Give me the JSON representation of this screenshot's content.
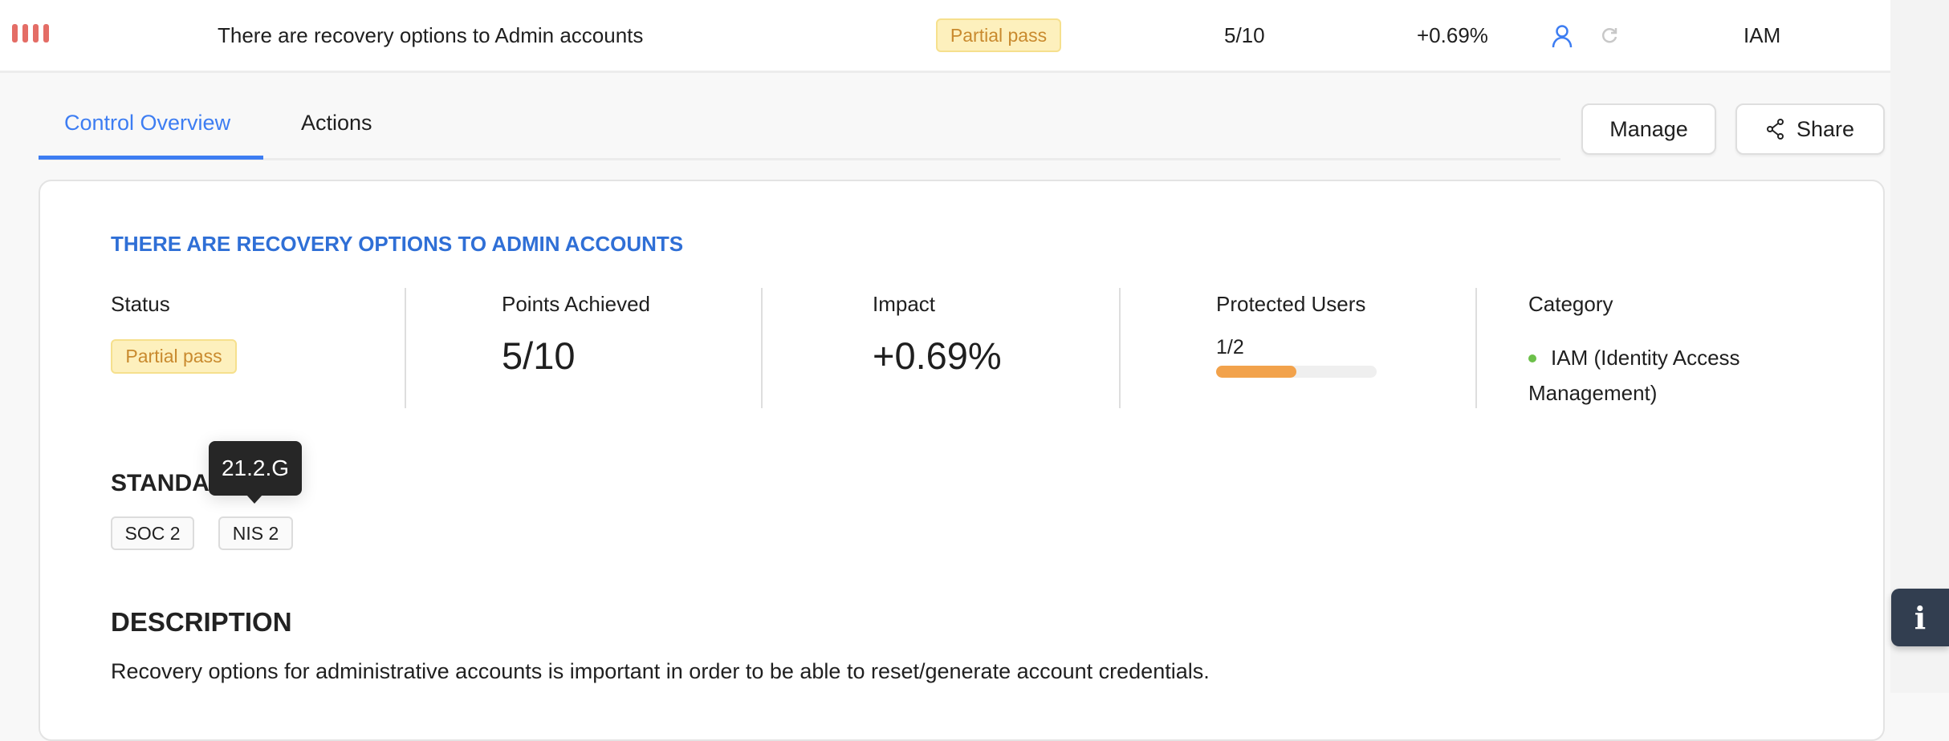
{
  "row": {
    "title": "There are recovery options to Admin accounts",
    "status": "Partial pass",
    "points": "5/10",
    "impact": "+0.69%",
    "category": "IAM",
    "severity_color": "#e46d66"
  },
  "tabs": [
    {
      "label": "Control Overview",
      "active": true
    },
    {
      "label": "Actions",
      "active": false
    }
  ],
  "buttons": {
    "manage": "Manage",
    "share": "Share"
  },
  "card": {
    "heading": "THERE ARE RECOVERY OPTIONS TO ADMIN ACCOUNTS",
    "stats": {
      "status_label": "Status",
      "status_value": "Partial pass",
      "points_label": "Points Achieved",
      "points_value": "5/10",
      "impact_label": "Impact",
      "impact_value": "+0.69%",
      "protected_label": "Protected Users",
      "protected_value": "1/2",
      "protected_fraction": 0.5,
      "category_label": "Category",
      "category_value": "IAM (Identity Access Management)"
    },
    "standards_heading": "STANDARDS",
    "standards": [
      "SOC 2",
      "NIS 2"
    ],
    "tooltip": "21.2.G",
    "description_heading": "DESCRIPTION",
    "description": "Recovery options for administrative accounts is important in order to be able to reset/generate account credentials."
  },
  "colors": {
    "accent": "#3d7df2",
    "heading": "#2f6fd6",
    "progress": "#f2a24b",
    "category_dot": "#6cc04a",
    "info_button": "#323e50"
  }
}
